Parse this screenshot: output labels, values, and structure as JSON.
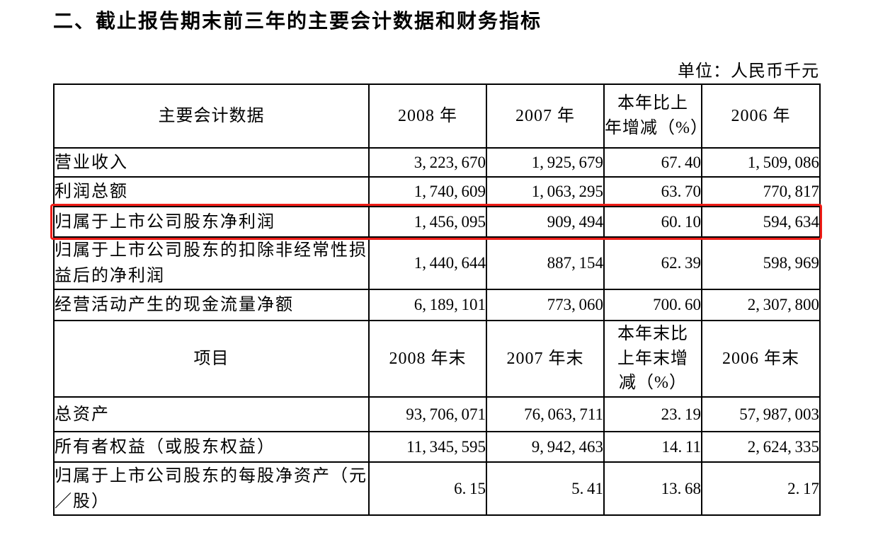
{
  "page": {
    "title": "二、截止报告期末前三年的主要会计数据和财务指标",
    "unit_label": "单位：人民币千元"
  },
  "table": {
    "highlight_color": "#ee1d17",
    "sections": [
      {
        "header": [
          "主要会计数据",
          "2008 年",
          "2007 年",
          "本年比上\n年增减（%）",
          "2006 年"
        ],
        "rows": [
          {
            "label": "营业收入",
            "values": [
              "3,223,670",
              "1,925,679",
              "67.40",
              "1,509,086"
            ],
            "highlighted": false
          },
          {
            "label": "利润总额",
            "values": [
              "1,740,609",
              "1,063,295",
              "63.70",
              "770,817"
            ],
            "highlighted": false
          },
          {
            "label": "归属于上市公司股东净利润",
            "values": [
              "1,456,095",
              "909,494",
              "60.10",
              "594,634"
            ],
            "highlighted": true
          },
          {
            "label": "归属于上市公司股东的扣除非经常性损益后的净利润",
            "values": [
              "1,440,644",
              "887,154",
              "62.39",
              "598,969"
            ],
            "highlighted": false
          },
          {
            "label": "经营活动产生的现金流量净额",
            "values": [
              "6,189,101",
              "773,060",
              "700.60",
              "2,307,800"
            ],
            "highlighted": false
          }
        ]
      },
      {
        "header": [
          "项目",
          "2008 年末",
          "2007 年末",
          "本年末比\n上年末增\n减（%）",
          "2006 年末"
        ],
        "rows": [
          {
            "label": "总资产",
            "values": [
              "93,706,071",
              "76,063,711",
              "23.19",
              "57,987,003"
            ],
            "highlighted": false
          },
          {
            "label": "所有者权益（或股东权益）",
            "values": [
              "11,345,595",
              "9,942,463",
              "14.11",
              "2,624,335"
            ],
            "highlighted": false
          },
          {
            "label": "归属于上市公司股东的每股净资产（元／股）",
            "values": [
              "6.15",
              "5.41",
              "13.68",
              "2.17"
            ],
            "highlighted": false
          }
        ]
      }
    ]
  }
}
